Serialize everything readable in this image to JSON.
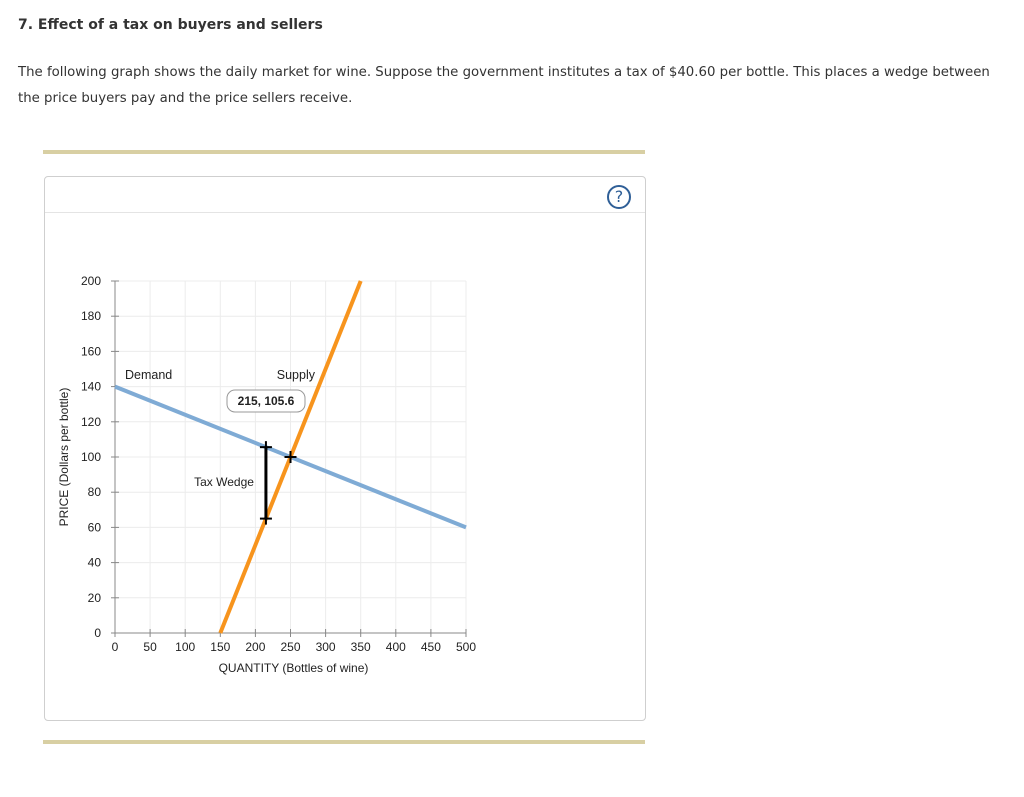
{
  "question": {
    "title": "7. Effect of a tax on buyers and sellers",
    "text": "The following graph shows the daily market for wine. Suppose the government institutes a tax of $40.60 per bottle. This places a wedge between the price buyers pay and the price sellers receive."
  },
  "help": {
    "label": "?",
    "icon": "help-icon"
  },
  "colors": {
    "demand": "#7fabd5",
    "supply": "#f7941d",
    "grid": "#ececec",
    "wedge": "#000000"
  },
  "chart_data": {
    "type": "line",
    "xlabel": "QUANTITY (Bottles of wine)",
    "ylabel": "PRICE (Dollars per bottle)",
    "xlim": [
      0,
      500
    ],
    "ylim": [
      0,
      200
    ],
    "x_ticks": [
      0,
      50,
      100,
      150,
      200,
      250,
      300,
      350,
      400,
      450,
      500
    ],
    "y_ticks": [
      0,
      20,
      40,
      60,
      80,
      100,
      120,
      140,
      160,
      180,
      200
    ],
    "grid": true,
    "series": [
      {
        "name": "Demand",
        "points": [
          [
            0,
            140
          ],
          [
            500,
            60
          ]
        ]
      },
      {
        "name": "Supply",
        "points": [
          [
            150,
            0
          ],
          [
            350,
            200
          ]
        ]
      }
    ],
    "tax_wedge": {
      "label": "Tax Wedge",
      "quantity": 215,
      "buyer_price": 105.6,
      "seller_price": 65
    },
    "equilibrium_marker": [
      250,
      100
    ],
    "tooltip": {
      "text": "215, 105.6",
      "anchor": [
        215,
        105.6
      ]
    }
  }
}
